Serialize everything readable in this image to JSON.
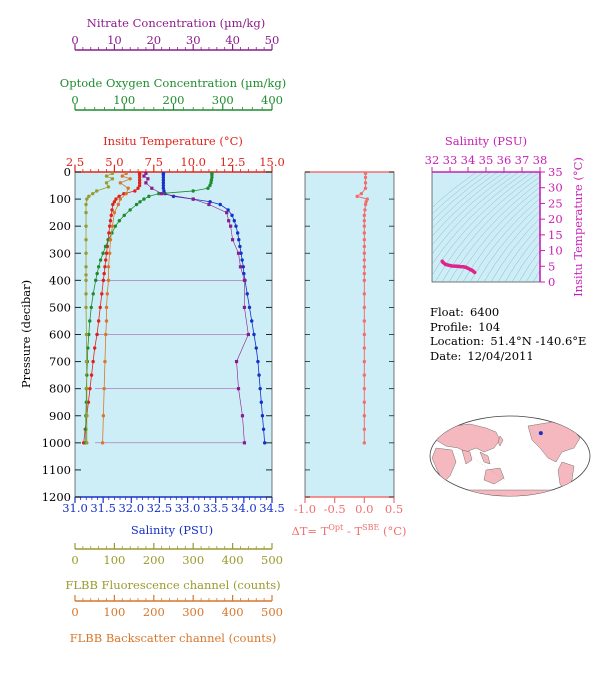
{
  "colors": {
    "nitrate": "#8B1C8B",
    "oxygen": "#1E8C2E",
    "temperature": "#E0231A",
    "salinity": "#1630C8",
    "fluorescence": "#9A9A2E",
    "backscatter": "#D8772C",
    "delta_t": "#F07070",
    "ts_salinity_axis": "#C820B4",
    "plot_bg": "#CDEEF7",
    "land": "#F4B8BE"
  },
  "chart_data": [
    {
      "type": "line",
      "title": "",
      "ylabel": "Pressure (decibar)",
      "ylim": [
        0,
        1200
      ],
      "y_inverted": true,
      "y_ticks": [
        "0",
        "100",
        "200",
        "300",
        "400",
        "500",
        "600",
        "700",
        "800",
        "900",
        "1000",
        "1100",
        "1200"
      ],
      "axes": {
        "nitrate": {
          "label": "Nitrate Concentration (µm/kg)",
          "range": [
            0,
            50
          ],
          "ticks": [
            "0",
            "10",
            "20",
            "30",
            "40",
            "50"
          ]
        },
        "oxygen": {
          "label": "Optode Oxygen Concentration (µm/kg)",
          "range": [
            0,
            400
          ],
          "ticks": [
            "0",
            "100",
            "200",
            "300",
            "400"
          ]
        },
        "temperature": {
          "label": "Insitu Temperature (°C)",
          "range": [
            2.5,
            15.0
          ],
          "ticks": [
            "2.5",
            "5.0",
            "7.5",
            "10.0",
            "12.5",
            "15.0"
          ]
        },
        "salinity": {
          "label": "Salinity (PSU)",
          "range": [
            31.0,
            34.5
          ],
          "ticks": [
            "31.0",
            "31.5",
            "32.0",
            "32.5",
            "33.0",
            "33.5",
            "34.0",
            "34.5"
          ]
        },
        "fluorescence": {
          "label": "FLBB Fluorescence channel (counts)",
          "range": [
            0,
            500
          ],
          "ticks": [
            "0",
            "100",
            "200",
            "300",
            "400",
            "500"
          ]
        },
        "backscatter": {
          "label": "FLBB Backscatter channel (counts)",
          "range": [
            0,
            500
          ],
          "ticks": [
            "0",
            "100",
            "200",
            "300",
            "400",
            "500"
          ]
        }
      },
      "series": [
        {
          "name": "Salinity",
          "axis": "salinity",
          "color": "#1630C8",
          "p": [
            5,
            10,
            20,
            30,
            40,
            50,
            60,
            70,
            80,
            90,
            100,
            110,
            120,
            140,
            160,
            180,
            200,
            225,
            250,
            275,
            300,
            325,
            350,
            375,
            400,
            450,
            500,
            550,
            600,
            650,
            700,
            750,
            800,
            850,
            900,
            950,
            1000
          ],
          "values": [
            32.57,
            32.57,
            32.57,
            32.57,
            32.57,
            32.57,
            32.57,
            32.58,
            32.6,
            32.75,
            33.1,
            33.4,
            33.58,
            33.72,
            33.79,
            33.83,
            33.86,
            33.89,
            33.91,
            33.93,
            33.95,
            33.97,
            33.99,
            34.0,
            34.02,
            34.06,
            34.1,
            34.14,
            34.18,
            34.22,
            34.25,
            34.27,
            34.29,
            34.31,
            34.33,
            34.35,
            34.37
          ]
        },
        {
          "name": "Temperature",
          "axis": "temperature",
          "color": "#E0231A",
          "p": [
            5,
            10,
            20,
            30,
            40,
            50,
            60,
            70,
            80,
            90,
            100,
            110,
            120,
            140,
            160,
            180,
            200,
            225,
            250,
            275,
            300,
            325,
            350,
            375,
            400,
            450,
            500,
            550,
            600,
            650,
            700,
            750,
            800,
            850,
            900,
            950,
            1000
          ],
          "values": [
            6.6,
            6.6,
            6.6,
            6.6,
            6.6,
            6.6,
            6.5,
            6.3,
            5.6,
            5.3,
            5.1,
            5.0,
            4.9,
            4.85,
            4.8,
            4.75,
            4.7,
            4.65,
            4.6,
            4.55,
            4.5,
            4.45,
            4.4,
            4.35,
            4.3,
            4.2,
            4.1,
            4.0,
            3.9,
            3.75,
            3.65,
            3.55,
            3.45,
            3.35,
            3.25,
            3.15,
            3.05
          ]
        },
        {
          "name": "Oxygen",
          "axis": "oxygen",
          "color": "#1E8C2E",
          "p": [
            5,
            10,
            20,
            30,
            40,
            50,
            60,
            70,
            80,
            90,
            100,
            110,
            120,
            140,
            160,
            180,
            200,
            225,
            250,
            275,
            300,
            325,
            350,
            375,
            400,
            450,
            500,
            550,
            600,
            650,
            700,
            750,
            800,
            850,
            900,
            950,
            1000
          ],
          "values": [
            278,
            278,
            278,
            277,
            276,
            274,
            270,
            240,
            170,
            150,
            140,
            132,
            125,
            112,
            100,
            90,
            82,
            75,
            68,
            62,
            57,
            52,
            48,
            45,
            42,
            37,
            33,
            30,
            28,
            26,
            25,
            24,
            23,
            23,
            22,
            22,
            22
          ]
        },
        {
          "name": "Nitrate",
          "axis": "nitrate",
          "color": "#8B1C8B",
          "p": [
            5,
            15,
            25,
            40,
            60,
            80,
            100,
            120,
            150,
            180,
            200,
            250,
            300,
            350,
            400,
            500,
            600,
            700,
            800,
            900,
            1000
          ],
          "values": [
            18,
            17.5,
            18.5,
            18,
            19.5,
            22,
            30,
            34,
            38.5,
            39,
            39.5,
            40,
            41.5,
            42,
            43,
            43,
            44,
            41,
            41.5,
            42.5,
            43
          ]
        },
        {
          "name": "Fluorescence",
          "axis": "fluorescence",
          "color": "#9A9A2E",
          "p": [
            5,
            15,
            25,
            40,
            55,
            70,
            80,
            90,
            100,
            120,
            150,
            200,
            250,
            300,
            350,
            380,
            400,
            450,
            500,
            600,
            700,
            800,
            900,
            1000
          ],
          "values": [
            95,
            80,
            95,
            80,
            85,
            55,
            45,
            35,
            30,
            28,
            28,
            28,
            28,
            28,
            28,
            28,
            28,
            28,
            28,
            29,
            29,
            30,
            30,
            30
          ]
        },
        {
          "name": "Backscatter",
          "axis": "backscatter",
          "color": "#D8772C",
          "p": [
            5,
            15,
            25,
            40,
            60,
            80,
            100,
            120,
            150,
            200,
            250,
            300,
            350,
            400,
            450,
            500,
            550,
            600,
            700,
            800,
            900,
            1000
          ],
          "values": [
            130,
            120,
            140,
            115,
            135,
            130,
            115,
            110,
            100,
            95,
            90,
            88,
            85,
            85,
            82,
            80,
            80,
            78,
            76,
            74,
            72,
            70
          ]
        }
      ]
    },
    {
      "type": "scatter",
      "xlabel": "ΔT= T^Opt - T^SBE (°C)",
      "xlim": [
        -1.0,
        0.5
      ],
      "x_ticks": [
        "-1.0",
        "-0.5",
        "0.0",
        "0.5"
      ],
      "ylim": [
        0,
        1200
      ],
      "series": [
        {
          "name": "ΔT",
          "color": "#F07070",
          "p": [
            5,
            20,
            40,
            60,
            80,
            90,
            100,
            110,
            120,
            140,
            160,
            180,
            200,
            225,
            250,
            275,
            300,
            325,
            350,
            375,
            400,
            450,
            500,
            550,
            600,
            650,
            700,
            750,
            800,
            850,
            900,
            950,
            1000
          ],
          "values": [
            0.02,
            0.02,
            0.02,
            0.02,
            -0.05,
            -0.12,
            0.05,
            0.03,
            0.02,
            0.01,
            0.0,
            0.0,
            0.0,
            0.0,
            0.0,
            0.0,
            0.0,
            0.0,
            0.0,
            0.0,
            0.0,
            0.0,
            0.0,
            0.0,
            0.0,
            0.0,
            0.0,
            0.0,
            0.0,
            0.0,
            0.0,
            0.0,
            0.0
          ]
        }
      ]
    },
    {
      "type": "scatter",
      "xlabel": "Salinity (PSU)",
      "ylabel": "Insitu Temperature (°C)",
      "xlim": [
        32,
        38
      ],
      "ylim": [
        0,
        35
      ],
      "x_ticks": [
        "32",
        "33",
        "34",
        "35",
        "36",
        "37",
        "38"
      ],
      "y_ticks": [
        "0",
        "5",
        "10",
        "15",
        "20",
        "25",
        "30",
        "35"
      ],
      "series": [
        {
          "name": "T-S",
          "color": "#E0238C",
          "x": [
            32.57,
            32.6,
            32.75,
            33.1,
            33.4,
            33.58,
            33.72,
            33.79,
            33.83,
            33.86,
            33.9,
            33.95,
            34.0,
            34.06,
            34.14,
            34.22,
            34.29,
            34.37
          ],
          "y": [
            6.6,
            6.3,
            5.6,
            5.1,
            5.0,
            4.9,
            4.85,
            4.8,
            4.75,
            4.7,
            4.6,
            4.5,
            4.35,
            4.2,
            3.9,
            3.75,
            3.45,
            3.05
          ]
        }
      ]
    }
  ],
  "info": {
    "float_label": "Float:",
    "float_value": "6400",
    "profile_label": "Profile:",
    "profile_value": "104",
    "location_label": "Location:",
    "location_value": "51.4°N -140.6°E",
    "date_label": "Date:",
    "date_value": "12/04/2011"
  },
  "map": {
    "marker_lat": 51.4,
    "marker_lon": -140.6,
    "projection": "pacific-centered"
  }
}
